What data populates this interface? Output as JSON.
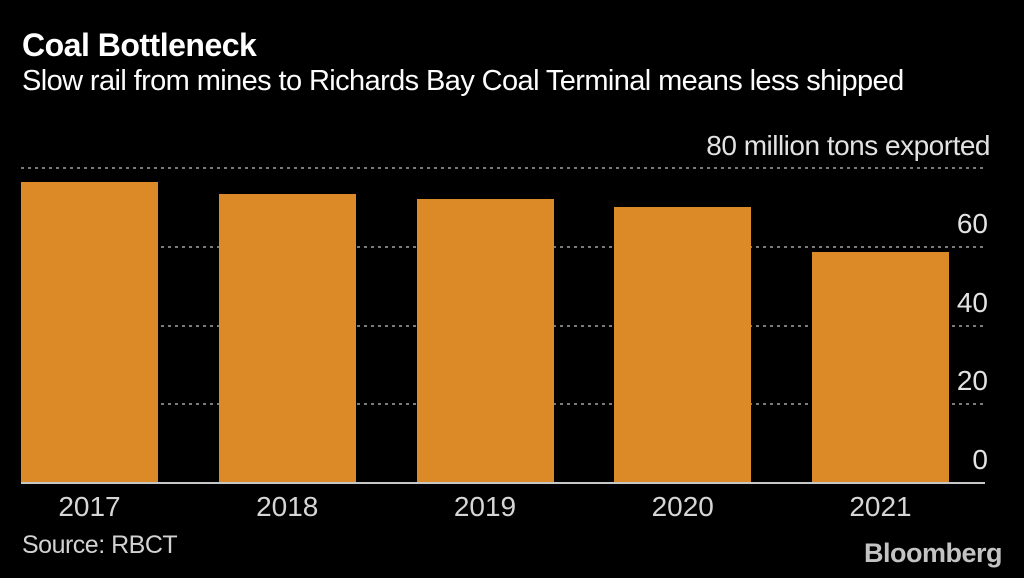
{
  "header": {
    "title": "Coal Bottleneck",
    "subtitle": "Slow rail from mines to Richards Bay Coal Terminal means less shipped"
  },
  "chart_data": {
    "type": "bar",
    "categories": [
      "2017",
      "2018",
      "2019",
      "2020",
      "2021"
    ],
    "values": [
      76.5,
      73.5,
      72.2,
      70.2,
      58.7
    ],
    "title": "Coal Bottleneck",
    "subtitle": "Slow rail from mines to Richards Bay Coal Terminal means less shipped",
    "unit_annotation": "80 million tons exported",
    "xlabel": "",
    "ylabel": "",
    "ylim": [
      0,
      80
    ],
    "yticks": [
      0,
      20,
      40,
      60,
      80
    ],
    "ytick_labels_shown": [
      60,
      40,
      20,
      0
    ],
    "grid": "horizontal-dotted",
    "legend": "none",
    "bar_color": "#dc8a28",
    "background_color": "#000000"
  },
  "footer": {
    "source": "Source: RBCT",
    "brand": "Bloomberg"
  }
}
